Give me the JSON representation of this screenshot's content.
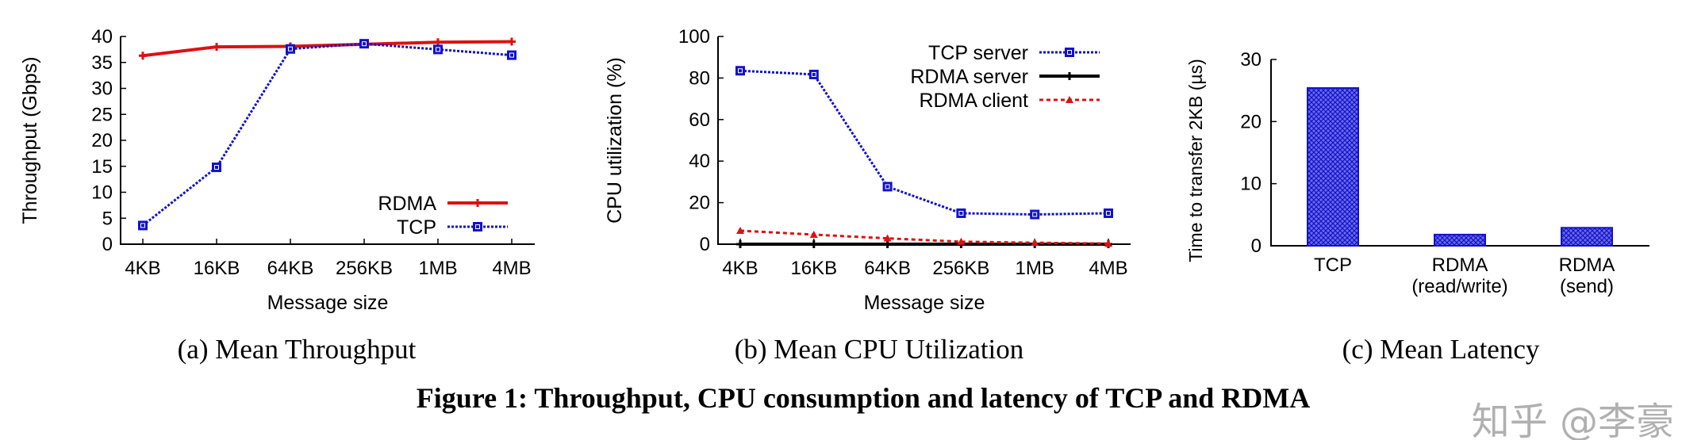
{
  "chart_data": [
    {
      "type": "line",
      "caption": "(a) Mean Throughput",
      "xlabel": "Message size",
      "ylabel": "Throughput (Gbps)",
      "categories": [
        "4KB",
        "16KB",
        "64KB",
        "256KB",
        "1MB",
        "4MB"
      ],
      "ylim": [
        0,
        40
      ],
      "yticks": [
        0,
        5,
        10,
        15,
        20,
        25,
        30,
        35,
        40
      ],
      "legend": "bottom-right",
      "grid": false,
      "series": [
        {
          "name": "RDMA",
          "color": "#dd1111",
          "style": "solid",
          "marker": "plus",
          "values": [
            36.3,
            38.0,
            38.1,
            38.5,
            38.9,
            39.0
          ]
        },
        {
          "name": "TCP",
          "color": "#1111cc",
          "style": "dotted",
          "marker": "square",
          "values": [
            3.6,
            14.8,
            37.6,
            38.6,
            37.5,
            36.4
          ]
        }
      ]
    },
    {
      "type": "line",
      "caption": "(b) Mean CPU Utilization",
      "xlabel": "Message size",
      "ylabel": "CPU utilization (%)",
      "categories": [
        "4KB",
        "16KB",
        "64KB",
        "256KB",
        "1MB",
        "4MB"
      ],
      "ylim": [
        0,
        100
      ],
      "yticks": [
        0,
        20,
        40,
        60,
        80,
        100
      ],
      "legend": "top-right",
      "grid": false,
      "series": [
        {
          "name": "TCP server",
          "color": "#1111cc",
          "style": "dotted",
          "marker": "square",
          "values": [
            83.5,
            81.7,
            27.7,
            14.9,
            14.3,
            14.9
          ]
        },
        {
          "name": "RDMA server",
          "color": "#000000",
          "style": "solid",
          "marker": "plus",
          "values": [
            0,
            0,
            0,
            0,
            0,
            0
          ]
        },
        {
          "name": "RDMA client",
          "color": "#dd1111",
          "style": "dashed",
          "marker": "triangle",
          "values": [
            6.5,
            4.6,
            2.8,
            1.2,
            0.7,
            0.3
          ]
        }
      ]
    },
    {
      "type": "bar",
      "caption": "(c) Mean Latency",
      "xlabel": "",
      "ylabel": "Time to transfer 2KB (µs)",
      "categories": [
        [
          "TCP"
        ],
        [
          "RDMA",
          "(read/write)"
        ],
        [
          "RDMA",
          "(send)"
        ]
      ],
      "values": [
        25.4,
        1.8,
        2.9
      ],
      "ylim": [
        0,
        30
      ],
      "yticks": [
        0,
        10,
        20,
        30
      ],
      "color": "#1111cc",
      "fill": "crosshatch",
      "grid": false
    }
  ],
  "figure_caption": "Figure 1: Throughput, CPU consumption and latency of TCP and RDMA",
  "watermark": "知乎 @李豪"
}
